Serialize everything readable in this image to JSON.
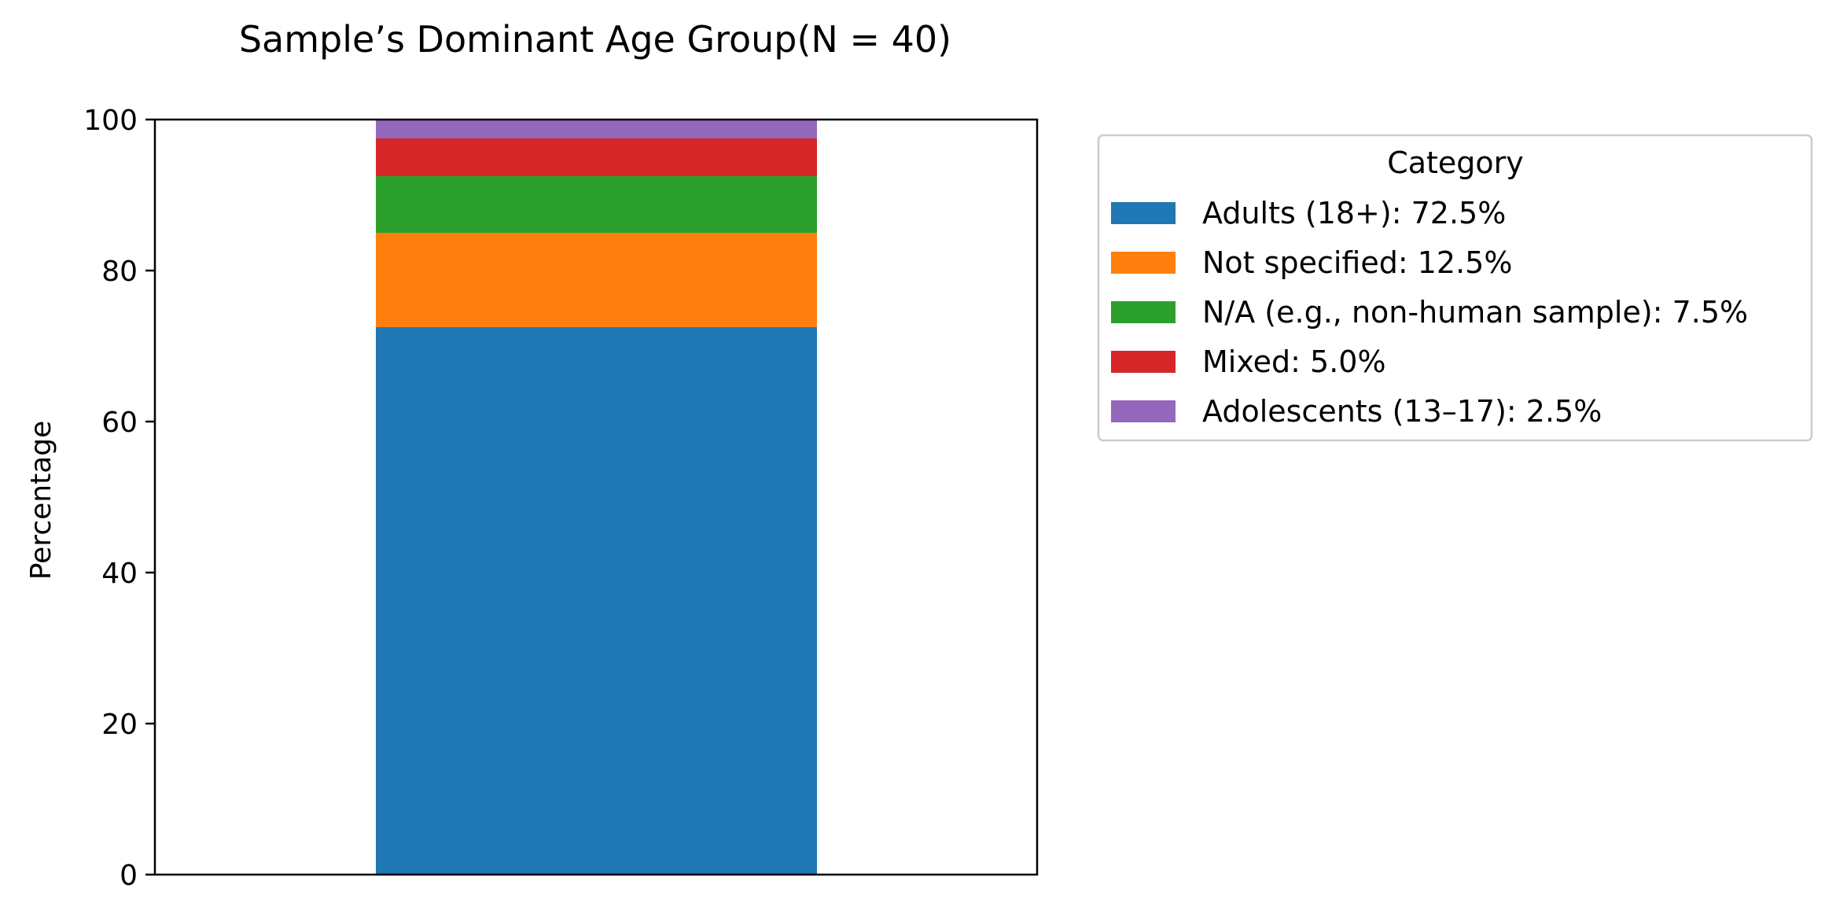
{
  "chart_data": {
    "type": "bar",
    "stacked": true,
    "title": "Sample’s Dominant Age Group(N = 40)",
    "xlabel": "",
    "ylabel": "Percentage",
    "ylim": [
      0,
      100
    ],
    "yticks": [
      "0",
      "20",
      "40",
      "60",
      "80",
      "100"
    ],
    "grid": false,
    "legend": {
      "title": "Category",
      "placement": "outside-right-top"
    },
    "series": [
      {
        "name": "Adults (18+): 72.5%",
        "value": 72.5,
        "color": "#1f77b4"
      },
      {
        "name": "Not specified: 12.5%",
        "value": 12.5,
        "color": "#ff7f0e"
      },
      {
        "name": "N/A (e.g., non-human sample): 7.5%",
        "value": 7.5,
        "color": "#2ca02c"
      },
      {
        "name": "Mixed: 5.0%",
        "value": 5.0,
        "color": "#d62728"
      },
      {
        "name": "Adolescents (13–17): 2.5%",
        "value": 2.5,
        "color": "#9467bd"
      }
    ]
  }
}
